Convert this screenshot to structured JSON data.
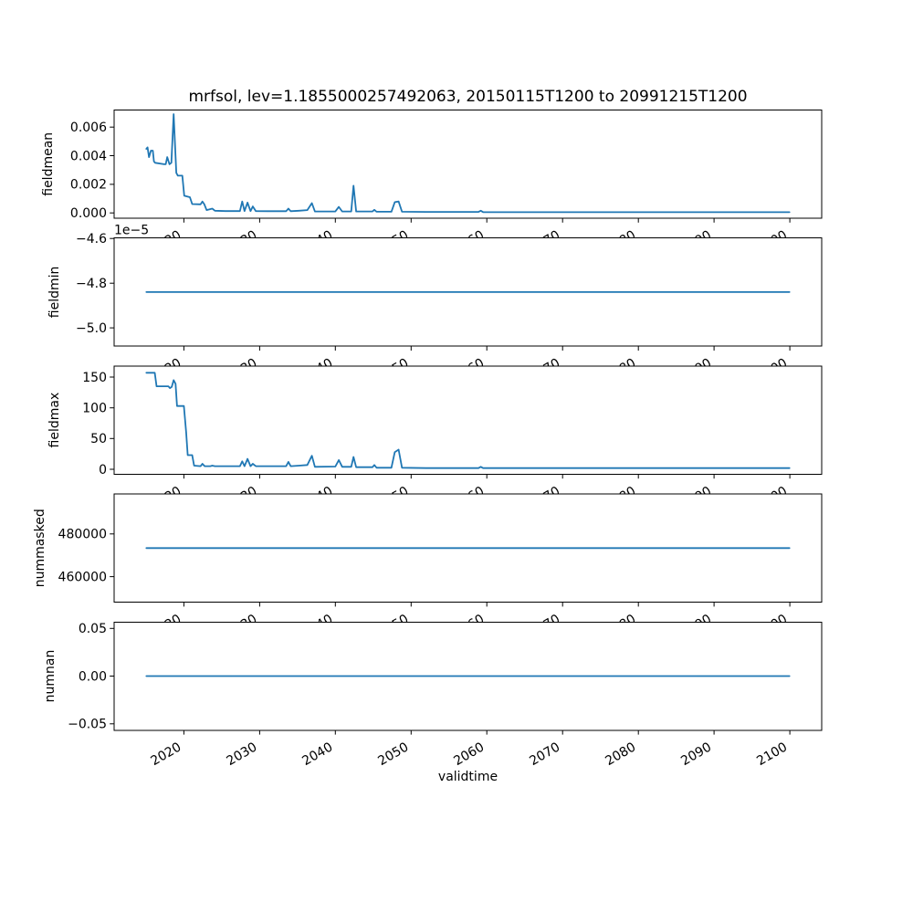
{
  "figure": {
    "background": "#ffffff",
    "text_color": "#000000"
  },
  "chart_data": {
    "type": "line",
    "title": "mrfsol, lev=1.1855000257492063, 20150115T1200 to 20991215T1200",
    "xlabel": "validtime",
    "grid": false,
    "legend_position": "none",
    "line_color": "#1f77b4",
    "xlim": [
      2010.79,
      2104.21
    ],
    "x_ticks": [
      2020,
      2030,
      2040,
      2050,
      2060,
      2070,
      2080,
      2090,
      2100
    ],
    "x_tick_labels": [
      "2020",
      "2030",
      "2040",
      "2050",
      "2060",
      "2070",
      "2080",
      "2090",
      "2100"
    ],
    "panels": [
      {
        "ylabel": "fieldmean",
        "ylim": [
          -0.00037,
          0.00719
        ],
        "yticks": [
          0.0,
          0.002,
          0.004,
          0.006
        ],
        "ytick_labels": [
          "0.000",
          "0.002",
          "0.004",
          "0.006"
        ],
        "x": [
          2015.05,
          2015.2,
          2015.4,
          2015.65,
          2015.9,
          2016.05,
          2016.2,
          2017.4,
          2017.6,
          2017.8,
          2018.1,
          2018.35,
          2018.65,
          2019.0,
          2019.2,
          2019.8,
          2020.05,
          2020.8,
          2021.1,
          2022.2,
          2022.45,
          2022.7,
          2023.0,
          2023.75,
          2024.1,
          2025.5,
          2027.4,
          2027.7,
          2028.0,
          2028.4,
          2028.8,
          2029.1,
          2029.5,
          2031.0,
          2033.5,
          2033.8,
          2034.1,
          2035.2,
          2036.3,
          2036.9,
          2037.3,
          2040.0,
          2040.45,
          2040.9,
          2042.1,
          2042.4,
          2042.75,
          2044.9,
          2045.15,
          2045.45,
          2047.4,
          2047.85,
          2048.35,
          2048.8,
          2052.0,
          2058.9,
          2059.2,
          2059.5,
          2070.0,
          2085.0,
          2099.96
        ],
        "y": [
          0.00447,
          0.00458,
          0.0039,
          0.00435,
          0.00435,
          0.0036,
          0.0035,
          0.0034,
          0.0034,
          0.0039,
          0.0034,
          0.0035,
          0.0069,
          0.0028,
          0.0026,
          0.0026,
          0.0012,
          0.0011,
          0.00062,
          0.0006,
          0.0008,
          0.0006,
          0.0002,
          0.0003,
          0.00015,
          0.00013,
          0.00013,
          0.0008,
          0.00013,
          0.00072,
          0.00013,
          0.00045,
          0.00013,
          0.00012,
          0.00012,
          0.0003,
          0.00012,
          0.00015,
          0.0002,
          0.00068,
          0.0001,
          0.0001,
          0.00042,
          0.0001,
          0.0001,
          0.0019,
          0.0001,
          0.0001,
          0.00022,
          8e-05,
          8e-05,
          0.00075,
          0.0008,
          8e-05,
          7e-05,
          7e-05,
          0.00015,
          6e-05,
          5e-05,
          5e-05,
          5e-05
        ]
      },
      {
        "ylabel": "fieldmin",
        "offset_text": "1e−5",
        "ylim": [
          -5.082e-05,
          -4.598e-05
        ],
        "yticks": [
          -4.6e-05,
          -4.8e-05,
          -5e-05
        ],
        "ytick_labels": [
          "−4.6",
          "−4.8",
          "−5.0"
        ],
        "x": [
          2015.04,
          2099.96
        ],
        "y": [
          -4.84e-05,
          -4.84e-05
        ]
      },
      {
        "ylabel": "fieldmax",
        "ylim": [
          -8,
          168
        ],
        "yticks": [
          0,
          50,
          100,
          150
        ],
        "ytick_labels": [
          "0",
          "50",
          "100",
          "150"
        ],
        "x": [
          2015.04,
          2016.15,
          2016.4,
          2017.95,
          2018.15,
          2018.4,
          2018.65,
          2018.9,
          2019.1,
          2020.0,
          2020.3,
          2020.5,
          2021.1,
          2021.35,
          2022.2,
          2022.45,
          2022.75,
          2023.5,
          2023.75,
          2024.1,
          2025.5,
          2027.4,
          2027.7,
          2028.0,
          2028.4,
          2028.8,
          2029.1,
          2029.5,
          2031.0,
          2033.5,
          2033.8,
          2034.1,
          2035.2,
          2036.3,
          2036.9,
          2037.3,
          2040.0,
          2040.45,
          2040.9,
          2042.1,
          2042.4,
          2042.75,
          2044.9,
          2045.15,
          2045.45,
          2047.4,
          2047.85,
          2048.35,
          2048.8,
          2052.0,
          2058.9,
          2059.2,
          2059.5,
          2070.0,
          2085.0,
          2099.96
        ],
        "y": [
          157,
          157,
          135,
          135,
          132,
          134,
          145,
          139,
          103,
          103,
          60,
          23,
          23,
          6,
          5,
          9,
          5,
          5,
          6,
          5,
          5,
          5,
          13,
          5,
          17,
          5,
          9,
          5,
          5,
          5,
          12,
          5,
          6,
          7,
          22,
          4,
          4.5,
          15,
          4,
          4,
          20,
          3.5,
          3.5,
          7,
          2.5,
          2.5,
          28,
          32,
          2.5,
          2,
          2,
          4,
          2,
          2,
          2,
          2
        ]
      },
      {
        "ylabel": "nummasked",
        "ylim": [
          448000,
          498700
        ],
        "yticks": [
          460000,
          480000
        ],
        "ytick_labels": [
          "460000",
          "480000"
        ],
        "x": [
          2015.04,
          2099.96
        ],
        "y": [
          473350,
          473350
        ]
      },
      {
        "ylabel": "numnan",
        "ylim": [
          -0.0567,
          0.0567
        ],
        "yticks": [
          -0.05,
          0.0,
          0.05
        ],
        "ytick_labels": [
          "−0.05",
          "0.00",
          "0.05"
        ],
        "x": [
          2015.04,
          2099.96
        ],
        "y": [
          0,
          0
        ]
      }
    ]
  }
}
